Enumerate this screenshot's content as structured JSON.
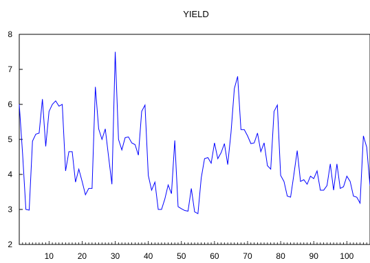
{
  "chart_data": {
    "type": "line",
    "title": "YIELD",
    "xlabel": "",
    "ylabel": "",
    "xlim": [
      1,
      107
    ],
    "ylim": [
      2,
      8
    ],
    "y_ticks": [
      2,
      3,
      4,
      5,
      6,
      7,
      8
    ],
    "x_ticks": [
      10,
      20,
      30,
      40,
      50,
      60,
      70,
      80,
      90,
      100
    ],
    "grid": false,
    "series": [
      {
        "color": "#0000ff",
        "x": [
          1,
          2,
          3,
          4,
          5,
          6,
          7,
          8,
          9,
          10,
          11,
          12,
          13,
          14,
          15,
          16,
          17,
          18,
          19,
          20,
          21,
          22,
          23,
          24,
          25,
          26,
          27,
          28,
          29,
          30,
          31,
          32,
          33,
          34,
          35,
          36,
          37,
          38,
          39,
          40,
          41,
          42,
          43,
          44,
          45,
          46,
          47,
          48,
          49,
          50,
          51,
          52,
          53,
          54,
          55,
          56,
          57,
          58,
          59,
          60,
          61,
          62,
          63,
          64,
          65,
          66,
          67,
          68,
          69,
          70,
          71,
          72,
          73,
          74,
          75,
          76,
          77,
          78,
          79,
          80,
          81,
          82,
          83,
          84,
          85,
          86,
          87,
          88,
          89,
          90,
          91,
          92,
          93,
          94,
          95,
          96,
          97,
          98,
          99,
          100,
          101,
          102,
          103,
          104,
          105,
          106,
          107
        ],
        "values": [
          6.0,
          4.6,
          3.0,
          2.98,
          4.95,
          5.15,
          5.18,
          6.15,
          4.8,
          5.8,
          6.0,
          6.1,
          5.95,
          6.0,
          4.1,
          4.65,
          4.65,
          3.78,
          4.15,
          3.8,
          3.42,
          3.6,
          3.6,
          6.5,
          5.3,
          5.0,
          5.3,
          4.5,
          3.72,
          7.5,
          5.0,
          4.7,
          5.05,
          5.07,
          4.9,
          4.85,
          4.55,
          5.8,
          5.98,
          3.97,
          3.55,
          3.78,
          3.0,
          3.0,
          3.3,
          3.7,
          3.45,
          4.97,
          3.08,
          3.02,
          2.97,
          2.95,
          3.6,
          2.93,
          2.88,
          3.9,
          4.45,
          4.48,
          4.32,
          4.9,
          4.45,
          4.62,
          4.88,
          4.28,
          5.2,
          6.45,
          6.8,
          5.28,
          5.28,
          5.1,
          4.88,
          4.9,
          5.18,
          4.65,
          4.9,
          4.25,
          4.15,
          5.8,
          5.98,
          3.97,
          3.8,
          3.38,
          3.35,
          4.0,
          4.68,
          3.8,
          3.85,
          3.72,
          3.95,
          3.88,
          4.1,
          3.55,
          3.55,
          3.68,
          4.3,
          3.55,
          4.3,
          3.6,
          3.65,
          3.95,
          3.8,
          3.38,
          3.35,
          3.18,
          5.1,
          4.78,
          3.68
        ]
      }
    ]
  }
}
